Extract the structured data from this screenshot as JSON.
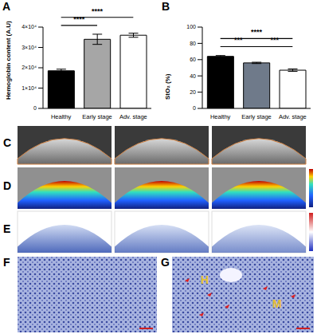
{
  "panel_labels": [
    "A",
    "B",
    "C",
    "D",
    "E",
    "F",
    "G"
  ],
  "image_labels": [
    "H",
    "M"
  ],
  "chart_data": [
    {
      "type": "bar",
      "y_label": "Hemoglobin content (A.U)",
      "categories": [
        "Healthy",
        "Early stage",
        "Adv. stage"
      ],
      "values": [
        18500,
        34000,
        36000
      ],
      "errors": [
        800,
        2500,
        1000
      ],
      "colors": [
        "#000000",
        "#a6a6a6",
        "#ffffff"
      ],
      "ylim": [
        0,
        40000
      ],
      "yticks": [
        0,
        {
          "value": 10000,
          "label": "1×10⁴"
        },
        {
          "value": 20000,
          "label": "2×10⁴"
        },
        {
          "value": 30000,
          "label": "3×10⁴"
        },
        {
          "value": 40000,
          "label": "4×10⁴"
        }
      ],
      "annotations": [
        {
          "from": "Healthy",
          "to": "Early stage",
          "text": "****"
        },
        {
          "from": "Healthy",
          "to": "Adv. stage",
          "text": "****"
        }
      ]
    },
    {
      "type": "bar",
      "y_label": "StO₂ (%)",
      "categories": [
        "Healthy",
        "Early stage",
        "Adv. stage"
      ],
      "values": [
        64,
        56,
        47
      ],
      "errors": [
        1,
        0.8,
        1.5
      ],
      "colors": [
        "#000000",
        "#6f7a8a",
        "#ffffff"
      ],
      "ylim": [
        0,
        100
      ],
      "yticks": [
        0,
        20,
        40,
        60,
        80,
        100
      ],
      "annotations": [
        {
          "from": "Healthy",
          "to": "Early stage",
          "text": "***"
        },
        {
          "from": "Early stage",
          "to": "Adv. stage",
          "text": "***"
        },
        {
          "from": "Healthy",
          "to": "Adv. stage",
          "text": "****"
        }
      ]
    }
  ]
}
